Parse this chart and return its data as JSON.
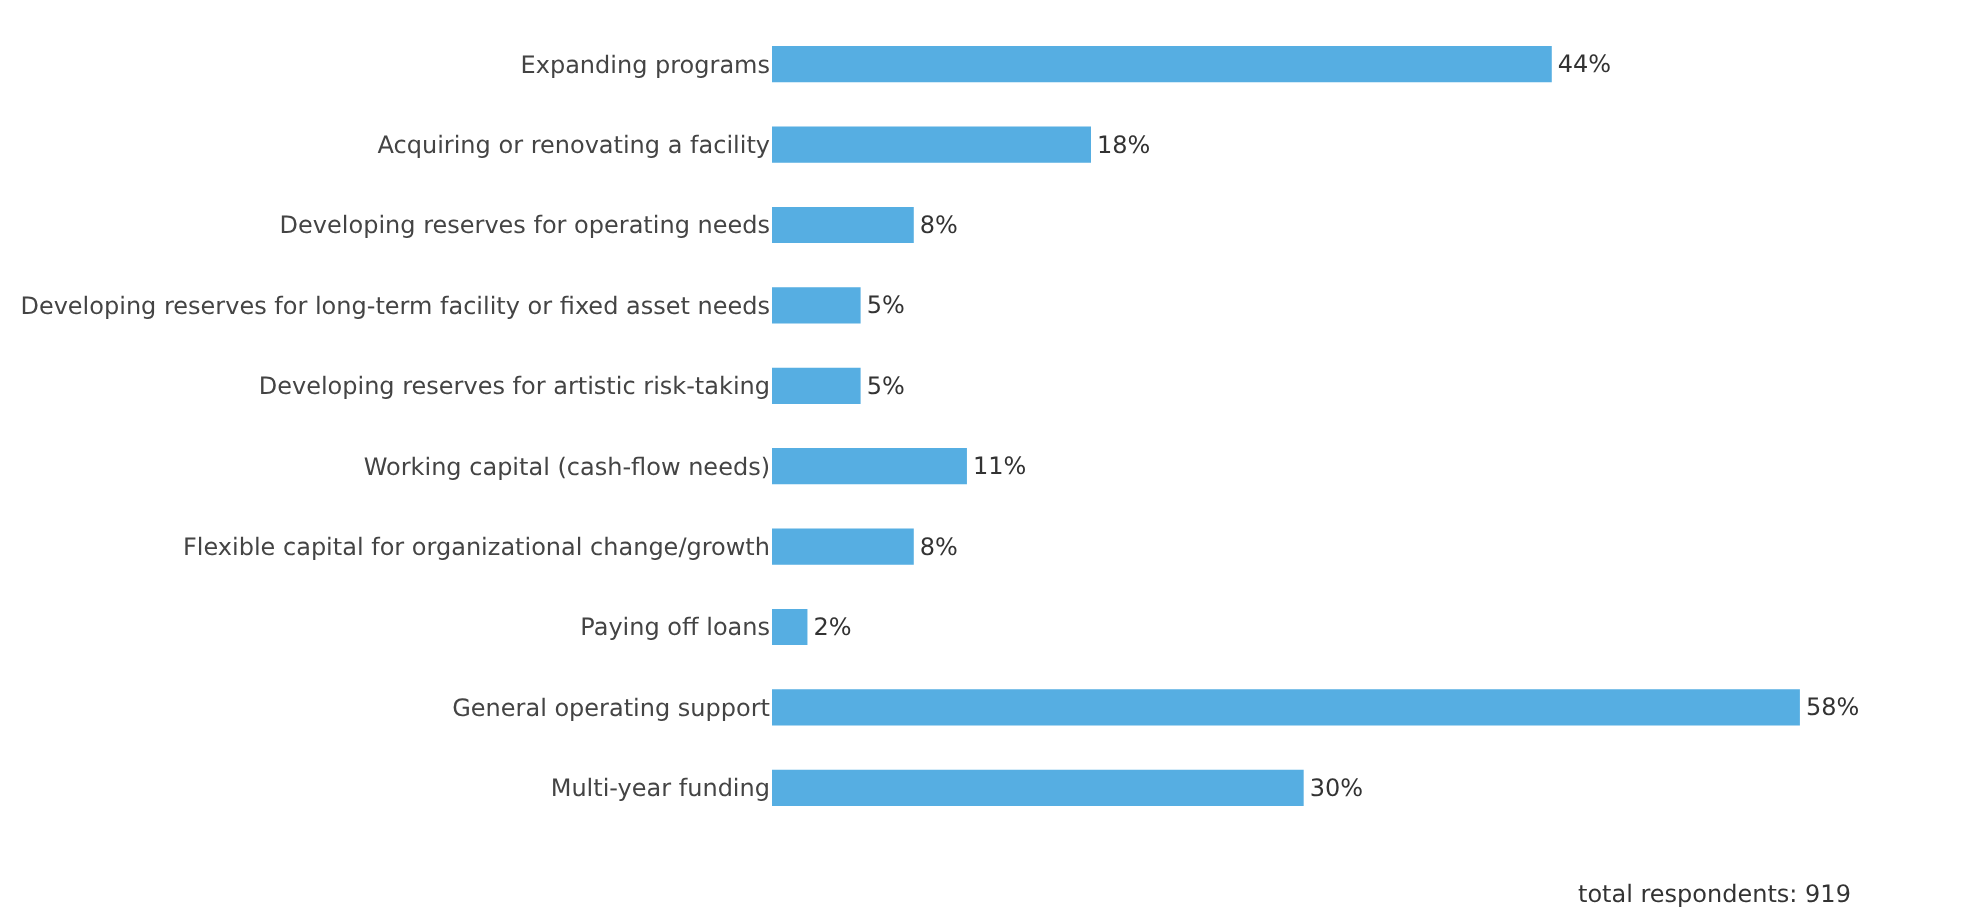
{
  "chart_data": {
    "type": "bar",
    "orientation": "horizontal",
    "categories": [
      "Expanding programs",
      "Acquiring or renovating a facility",
      "Developing reserves for operating needs",
      "Developing reserves for long-term facility or fixed asset needs",
      "Developing reserves for artistic risk-taking",
      "Working capital (cash-flow needs)",
      "Flexible capital for organizational change/growth",
      "Paying off loans",
      "General operating support",
      "Multi-year funding"
    ],
    "values": [
      44,
      18,
      8,
      5,
      5,
      11,
      8,
      2,
      58,
      30
    ],
    "value_labels": [
      "44%",
      "18%",
      "8%",
      "5%",
      "5%",
      "11%",
      "8%",
      "2%",
      "58%",
      "30%"
    ],
    "color": "#56aee2",
    "annotations": [
      "total respondents: 919"
    ]
  }
}
